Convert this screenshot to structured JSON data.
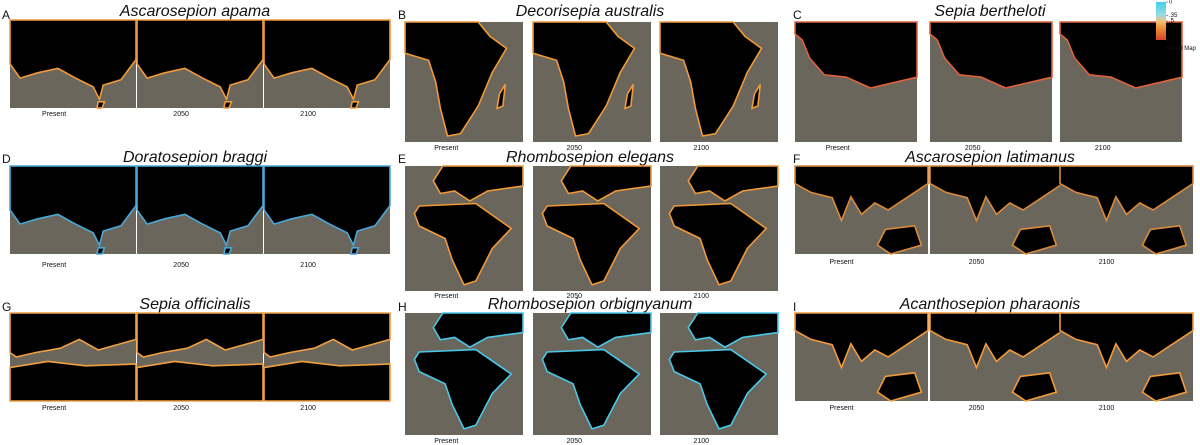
{
  "panels": [
    {
      "letter": "A",
      "title": "Ascarosepion apama",
      "labels": [
        "Present",
        "2050",
        "2100"
      ]
    },
    {
      "letter": "B",
      "title": "Decorisepia australis",
      "labels": [
        "Present",
        "2050",
        "2100"
      ]
    },
    {
      "letter": "C",
      "title": "Sepia bertheloti",
      "labels": [
        "Present",
        "2050",
        "2100"
      ]
    },
    {
      "letter": "D",
      "title": "Doratosepion braggi",
      "labels": [
        "Present",
        "2050",
        "2100"
      ]
    },
    {
      "letter": "E",
      "title": "Rhombosepion elegans",
      "labels": [
        "Present",
        "2050",
        "2100"
      ]
    },
    {
      "letter": "F",
      "title": "Ascarosepion latimanus",
      "labels": [
        "Present",
        "2050",
        "2100"
      ]
    },
    {
      "letter": "G",
      "title": "Sepia officinalis",
      "labels": [
        "Present",
        "2050",
        "2100"
      ]
    },
    {
      "letter": "H",
      "title": "Rhombosepion orbignyanum",
      "labels": [
        "Present",
        "2050",
        "2100"
      ]
    },
    {
      "letter": "I",
      "title": "Acanthosepion pharaonis",
      "labels": [
        "Present",
        "2050",
        "2100"
      ]
    }
  ],
  "legend": {
    "ticks": [
      0,
      {
        "value": 0.35,
        "label": ".35"
      },
      {
        "value": 0.5,
        "label": ".5"
      },
      {
        "value": 0.65,
        "label": ".65"
      },
      1
    ],
    "map_label": "World Map"
  }
}
